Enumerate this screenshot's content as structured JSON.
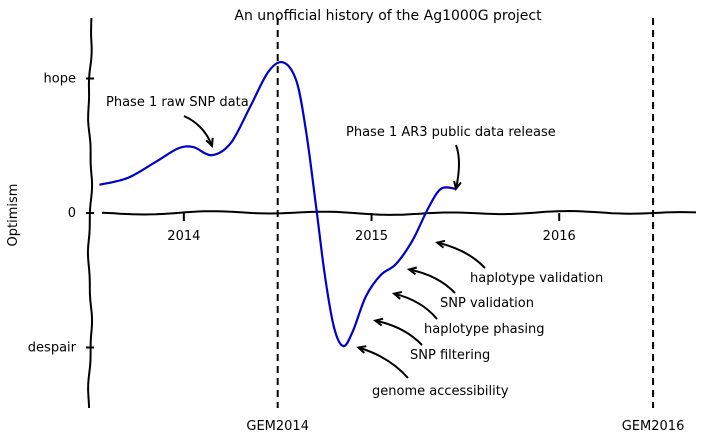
{
  "chart_data": {
    "type": "line",
    "title": "An unofficial history of the Ag1000G project",
    "ylabel": "Optimism",
    "xlabel": "",
    "xlim": [
      2013.5,
      2016.75
    ],
    "ylim": [
      -1.45,
      1.45
    ],
    "x_ticks": [
      {
        "value": 2014,
        "label": "2014"
      },
      {
        "value": 2015,
        "label": "2015"
      },
      {
        "value": 2016,
        "label": "2016"
      }
    ],
    "y_ticks": [
      {
        "value": 1,
        "label": "hope"
      },
      {
        "value": 0,
        "label": "0"
      },
      {
        "value": -1,
        "label": "despair"
      }
    ],
    "grid": false,
    "series": [
      {
        "color": "#0000cc",
        "points": [
          [
            2013.55,
            0.21
          ],
          [
            2013.7,
            0.26
          ],
          [
            2013.85,
            0.38
          ],
          [
            2013.97,
            0.48
          ],
          [
            2014.05,
            0.49
          ],
          [
            2014.15,
            0.43
          ],
          [
            2014.25,
            0.52
          ],
          [
            2014.35,
            0.78
          ],
          [
            2014.45,
            1.05
          ],
          [
            2014.53,
            1.12
          ],
          [
            2014.6,
            0.98
          ],
          [
            2014.65,
            0.62
          ],
          [
            2014.7,
            0.1
          ],
          [
            2014.75,
            -0.45
          ],
          [
            2014.8,
            -0.85
          ],
          [
            2014.85,
            -0.99
          ],
          [
            2014.9,
            -0.88
          ],
          [
            2014.97,
            -0.62
          ],
          [
            2015.05,
            -0.46
          ],
          [
            2015.13,
            -0.38
          ],
          [
            2015.22,
            -0.2
          ],
          [
            2015.3,
            0.03
          ],
          [
            2015.37,
            0.18
          ],
          [
            2015.45,
            0.18
          ]
        ]
      }
    ],
    "vlines": [
      {
        "x": 2014.5,
        "label": "GEM2014"
      },
      {
        "x": 2016.5,
        "label": "GEM2016"
      }
    ],
    "annotations": [
      {
        "text": "Phase 1 raw SNP data",
        "x": 2014.15,
        "y": 0.5
      },
      {
        "text": "Phase 1 AR3 public data release",
        "x": 2015.45,
        "y": 0.18
      },
      {
        "text": "haplotype validation",
        "x": 2015.35,
        "y": -0.22
      },
      {
        "text": "SNP validation",
        "x": 2015.2,
        "y": -0.42
      },
      {
        "text": "haplotype phasing",
        "x": 2015.12,
        "y": -0.6
      },
      {
        "text": "SNP filtering",
        "x": 2015.02,
        "y": -0.8
      },
      {
        "text": "genome accessibility",
        "x": 2014.93,
        "y": -1.0
      }
    ]
  }
}
